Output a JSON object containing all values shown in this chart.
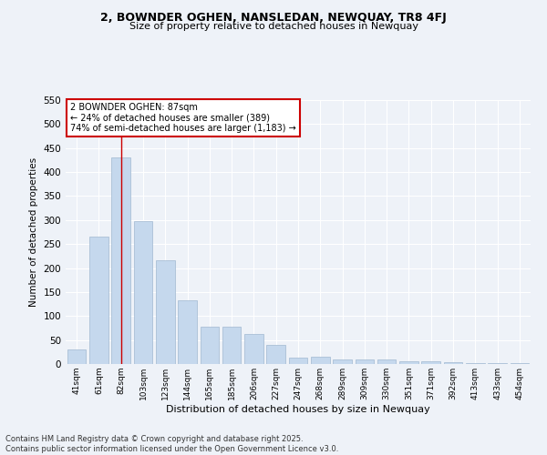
{
  "title1": "2, BOWNDER OGHEN, NANSLEDAN, NEWQUAY, TR8 4FJ",
  "title2": "Size of property relative to detached houses in Newquay",
  "xlabel": "Distribution of detached houses by size in Newquay",
  "ylabel": "Number of detached properties",
  "categories": [
    "41sqm",
    "61sqm",
    "82sqm",
    "103sqm",
    "123sqm",
    "144sqm",
    "165sqm",
    "185sqm",
    "206sqm",
    "227sqm",
    "247sqm",
    "268sqm",
    "289sqm",
    "309sqm",
    "330sqm",
    "351sqm",
    "371sqm",
    "392sqm",
    "413sqm",
    "433sqm",
    "454sqm"
  ],
  "values": [
    30,
    265,
    430,
    298,
    217,
    133,
    78,
    78,
    62,
    40,
    14,
    15,
    9,
    9,
    9,
    5,
    5,
    3,
    2,
    2,
    2
  ],
  "bar_color": "#c5d8ed",
  "bar_edge_color": "#a0b8d0",
  "highlight_bar_index": 2,
  "highlight_line_color": "#cc0000",
  "annotation_line1": "2 BOWNDER OGHEN: 87sqm",
  "annotation_line2": "← 24% of detached houses are smaller (389)",
  "annotation_line3": "74% of semi-detached houses are larger (1,183) →",
  "annotation_box_color": "#ffffff",
  "annotation_box_edge": "#cc0000",
  "background_color": "#eef2f8",
  "grid_color": "#ffffff",
  "ylim": [
    0,
    550
  ],
  "yticks": [
    0,
    50,
    100,
    150,
    200,
    250,
    300,
    350,
    400,
    450,
    500,
    550
  ],
  "footer1": "Contains HM Land Registry data © Crown copyright and database right 2025.",
  "footer2": "Contains public sector information licensed under the Open Government Licence v3.0."
}
